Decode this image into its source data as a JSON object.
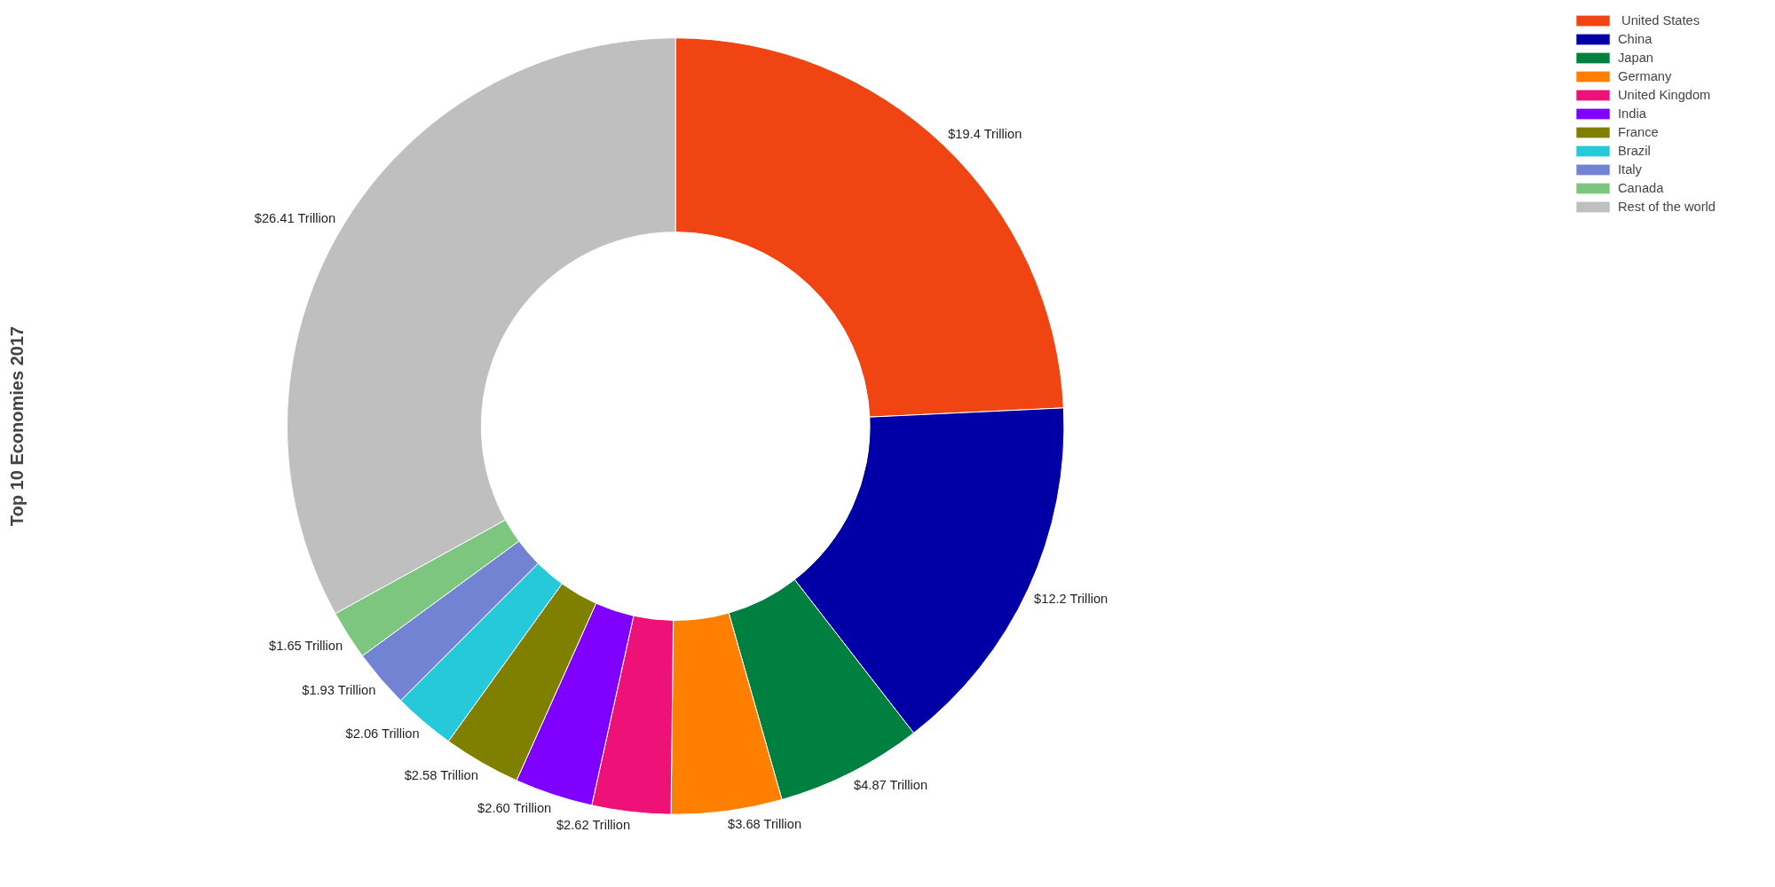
{
  "chart_data": {
    "type": "donut",
    "title": "Top 10 Economies 2017",
    "categories": [
      " United States",
      "China",
      "Japan",
      "Germany",
      "United Kingdom",
      "India",
      "France",
      "Brazil",
      "Italy",
      "Canada",
      "Rest of the world"
    ],
    "values": [
      19.4,
      12.2,
      4.87,
      3.68,
      2.62,
      2.6,
      2.58,
      2.06,
      1.93,
      1.65,
      26.41
    ],
    "value_labels": [
      "$19.4 Trillion",
      "$12.2 Trillion",
      "$4.87 Trillion",
      "$3.68 Trillion",
      "$2.62 Trillion",
      "$2.60 Trillion",
      "$2.58 Trillion",
      "$2.06 Trillion",
      "$1.93 Trillion",
      "$1.65 Trillion",
      "$26.41 Trillion"
    ],
    "colors": [
      "#f04513",
      "#0000a6",
      "#008040",
      "#ff8000",
      "#ee1177",
      "#8000ff",
      "#808000",
      "#26c9d9",
      "#7383d3",
      "#7dc67f",
      "#bfbfbf"
    ],
    "legend": "top right"
  }
}
